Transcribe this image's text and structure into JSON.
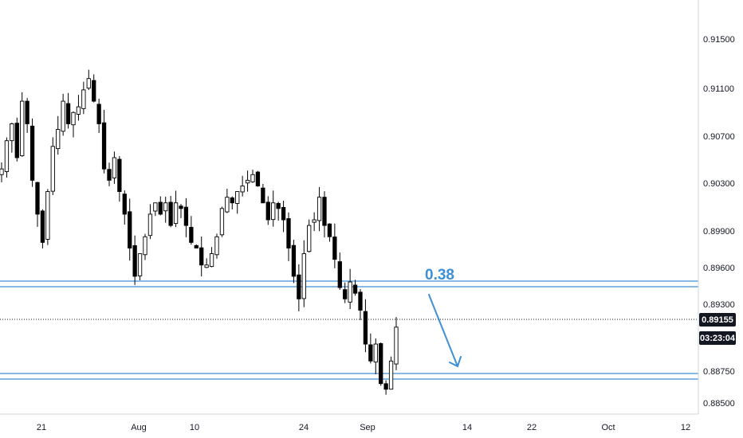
{
  "chart_data": {
    "type": "candlestick",
    "title": "",
    "y_tick_labels": [
      "0.91500",
      "0.91100",
      "0.90700",
      "0.90300",
      "0.89900",
      "0.89600",
      "0.89300",
      "0.88750",
      "0.88500"
    ],
    "x_tick_labels": [
      "21",
      "Aug",
      "10",
      "24",
      "Sep",
      "14",
      "22",
      "Oct",
      "12"
    ],
    "ylim": [
      0.8843,
      0.9199
    ],
    "current_price": 0.89155,
    "current_price_label": "0.89155",
    "countdown": "03:23:04",
    "levels": [
      {
        "name": "resistance_upper",
        "value": 0.8951
      },
      {
        "name": "resistance_lower",
        "value": 0.8946
      },
      {
        "name": "support_upper",
        "value": 0.8871
      },
      {
        "name": "support_lower",
        "value": 0.8866
      }
    ],
    "annotations": {
      "level_label": "0.38",
      "arrow": "down"
    },
    "close_series": [
      0.906,
      0.9085,
      0.91,
      0.907,
      0.912,
      0.91,
      0.905,
      0.902,
      0.8995,
      0.904,
      0.908,
      0.9095,
      0.912,
      0.91,
      0.911,
      0.9115,
      0.913,
      0.914,
      0.912,
      0.91,
      0.906,
      0.905,
      0.907,
      0.904,
      0.902,
      0.899,
      0.8965,
      0.8985,
      0.9,
      0.902,
      0.903,
      0.902,
      0.903,
      0.901,
      0.903,
      0.9025,
      0.901,
      0.8995,
      0.899,
      0.8975,
      0.8975,
      0.8985,
      0.9,
      0.9025,
      0.9035,
      0.903,
      0.904,
      0.9045,
      0.905,
      0.9055,
      0.9045,
      0.903,
      0.9015,
      0.903,
      0.9025,
      0.9015,
      0.899,
      0.8965,
      0.8945,
      0.8985,
      0.901,
      0.9015,
      0.9035,
      0.901,
      0.9,
      0.898,
      0.8955,
      0.8945,
      0.896,
      0.895,
      0.8935,
      0.8905,
      0.889,
      0.8905,
      0.887,
      0.8865,
      0.889,
      0.892
    ]
  }
}
